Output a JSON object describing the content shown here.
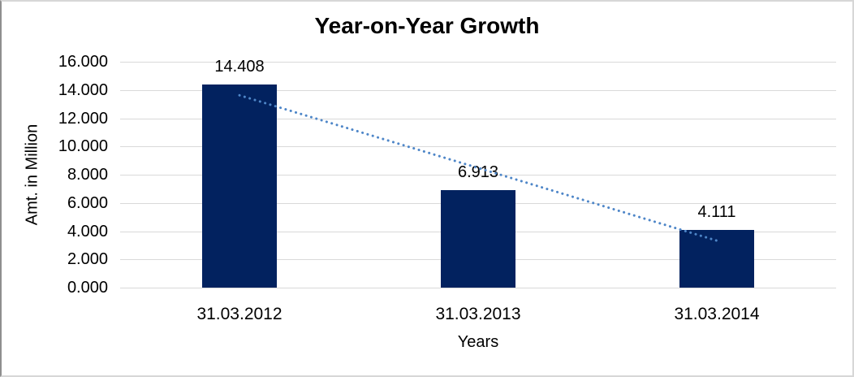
{
  "chart_data": {
    "type": "bar",
    "title": "Year-on-Year Growth",
    "xlabel": "Years",
    "ylabel": "Amt. in Million",
    "categories": [
      "31.03.2012",
      "31.03.2013",
      "31.03.2014"
    ],
    "values": [
      14.408,
      6.913,
      4.111
    ],
    "data_labels": [
      "14.408",
      "6.913",
      "4.111"
    ],
    "ylim": [
      0,
      16
    ],
    "ytick_step": 2,
    "ytick_labels": [
      "0.000",
      "2.000",
      "4.000",
      "6.000",
      "8.000",
      "10.000",
      "12.000",
      "14.000",
      "16.000"
    ],
    "grid": true,
    "legend": "none",
    "trendline": {
      "type": "linear",
      "style": "dotted"
    },
    "colors": {
      "bar": "#02225f",
      "gridline": "#d9d9d9",
      "trendline": "#4e86c8",
      "text": "#000000",
      "background": "#ffffff"
    }
  }
}
